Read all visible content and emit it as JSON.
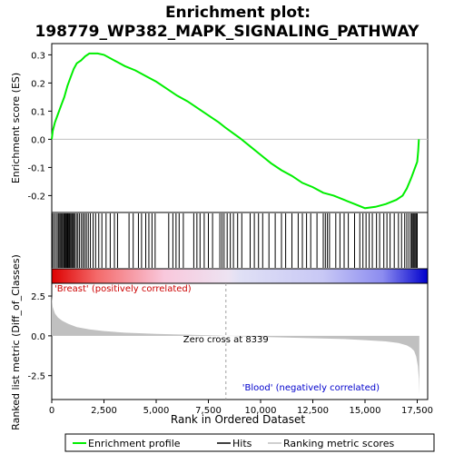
{
  "chart_data": {
    "type": "line",
    "title_line1": "Enrichment plot:",
    "title_line2": "198779_WP382_MAPK_SIGNALING_PATHWAY",
    "xlabel": "Rank in Ordered Dataset",
    "ylabel_top": "Enrichment score (ES)",
    "ylabel_bottom": "Ranked list metric (Diff_of_Classes)",
    "xlim": [
      0,
      18000
    ],
    "x_ticks": [
      0,
      2500,
      5000,
      7500,
      10000,
      12500,
      15000,
      17500
    ],
    "x_tick_labels": [
      "0",
      "2,500",
      "5,000",
      "7,500",
      "10,000",
      "12,500",
      "15,000",
      "17,500"
    ],
    "es_ylim": [
      -0.26,
      0.34
    ],
    "es_ticks": [
      -0.2,
      -0.1,
      0.0,
      0.1,
      0.2,
      0.3
    ],
    "es_tick_labels": [
      "-0.2",
      "-0.1",
      "0.0",
      "0.1",
      "0.2",
      "0.3"
    ],
    "metric_ylim": [
      -4.0,
      3.3
    ],
    "metric_ticks": [
      -2.5,
      0.0,
      2.5
    ],
    "metric_tick_labels": [
      "-2.5",
      "0.0",
      "2.5"
    ],
    "zero_cross_rank": 8339,
    "zero_cross_label": "Zero cross at 8339",
    "positive_label": "'Breast' (positively correlated)",
    "negative_label": "'Blood' (negatively correlated)",
    "total_ranks": 17600,
    "es_profile": [
      [
        0,
        0.0
      ],
      [
        50,
        0.03
      ],
      [
        150,
        0.06
      ],
      [
        300,
        0.09
      ],
      [
        450,
        0.12
      ],
      [
        600,
        0.15
      ],
      [
        750,
        0.19
      ],
      [
        900,
        0.22
      ],
      [
        1050,
        0.25
      ],
      [
        1200,
        0.27
      ],
      [
        1400,
        0.28
      ],
      [
        1600,
        0.295
      ],
      [
        1800,
        0.305
      ],
      [
        2200,
        0.305
      ],
      [
        2500,
        0.3
      ],
      [
        3000,
        0.28
      ],
      [
        3500,
        0.26
      ],
      [
        4000,
        0.245
      ],
      [
        4500,
        0.225
      ],
      [
        5000,
        0.205
      ],
      [
        5500,
        0.18
      ],
      [
        6000,
        0.155
      ],
      [
        6500,
        0.135
      ],
      [
        7000,
        0.11
      ],
      [
        7500,
        0.085
      ],
      [
        8000,
        0.06
      ],
      [
        8339,
        0.04
      ],
      [
        9000,
        0.005
      ],
      [
        9500,
        -0.025
      ],
      [
        10000,
        -0.055
      ],
      [
        10500,
        -0.085
      ],
      [
        11000,
        -0.11
      ],
      [
        11500,
        -0.13
      ],
      [
        12000,
        -0.155
      ],
      [
        12500,
        -0.17
      ],
      [
        13000,
        -0.19
      ],
      [
        13500,
        -0.2
      ],
      [
        14000,
        -0.215
      ],
      [
        14500,
        -0.23
      ],
      [
        15000,
        -0.245
      ],
      [
        15500,
        -0.24
      ],
      [
        16000,
        -0.23
      ],
      [
        16500,
        -0.215
      ],
      [
        16800,
        -0.2
      ],
      [
        17000,
        -0.175
      ],
      [
        17200,
        -0.14
      ],
      [
        17400,
        -0.1
      ],
      [
        17500,
        -0.08
      ],
      [
        17550,
        -0.04
      ],
      [
        17580,
        0.0
      ]
    ],
    "hits": [
      30,
      100,
      180,
      260,
      320,
      380,
      430,
      480,
      530,
      580,
      630,
      680,
      720,
      760,
      800,
      850,
      900,
      950,
      1000,
      1050,
      1100,
      1180,
      1250,
      1330,
      1420,
      1500,
      1580,
      1660,
      1750,
      1850,
      1980,
      2100,
      2250,
      2400,
      2600,
      2800,
      3000,
      3150,
      3700,
      3900,
      4150,
      4300,
      4500,
      4650,
      4800,
      4950,
      5600,
      5800,
      5950,
      6100,
      6300,
      6800,
      6950,
      7100,
      7300,
      7500,
      7700,
      8050,
      8150,
      8250,
      8400,
      8550,
      8700,
      8900,
      9100,
      9500,
      9700,
      9900,
      10100,
      10400,
      10700,
      11000,
      11200,
      11500,
      11800,
      12000,
      12200,
      12400,
      12700,
      13000,
      13100,
      13200,
      13300,
      13600,
      13800,
      14000,
      14200,
      14500,
      14750,
      14900,
      15050,
      15200,
      15350,
      15550,
      15700,
      15900,
      16050,
      16200,
      16400,
      16600,
      16750,
      16900,
      17000,
      17100,
      17200,
      17250,
      17300,
      17350,
      17400,
      17450,
      17500
    ],
    "metric_profile": [
      [
        0,
        2.5
      ],
      [
        50,
        1.8
      ],
      [
        150,
        1.4
      ],
      [
        300,
        1.15
      ],
      [
        500,
        0.95
      ],
      [
        800,
        0.75
      ],
      [
        1200,
        0.55
      ],
      [
        1800,
        0.4
      ],
      [
        2500,
        0.3
      ],
      [
        3500,
        0.2
      ],
      [
        5000,
        0.12
      ],
      [
        6500,
        0.07
      ],
      [
        8000,
        0.02
      ],
      [
        8339,
        0.0
      ],
      [
        9500,
        -0.05
      ],
      [
        11000,
        -0.1
      ],
      [
        12500,
        -0.15
      ],
      [
        14000,
        -0.2
      ],
      [
        15000,
        -0.27
      ],
      [
        16000,
        -0.35
      ],
      [
        16600,
        -0.45
      ],
      [
        17000,
        -0.6
      ],
      [
        17200,
        -0.75
      ],
      [
        17350,
        -0.95
      ],
      [
        17450,
        -1.3
      ],
      [
        17530,
        -1.9
      ],
      [
        17580,
        -2.7
      ],
      [
        17600,
        -3.7
      ]
    ],
    "colors": {
      "es_line": "#00ee00",
      "hits": "#000000",
      "metric_fill": "#c0c0c0",
      "zero_line": "#a0a0a0",
      "positive_text": "#cc0000",
      "negative_text": "#0000cc"
    }
  },
  "legend": {
    "items": [
      {
        "label": "Enrichment profile",
        "color": "#00ee00"
      },
      {
        "label": "Hits",
        "color": "#000000"
      },
      {
        "label": "Ranking metric scores",
        "color": "#c0c0c0"
      }
    ]
  }
}
